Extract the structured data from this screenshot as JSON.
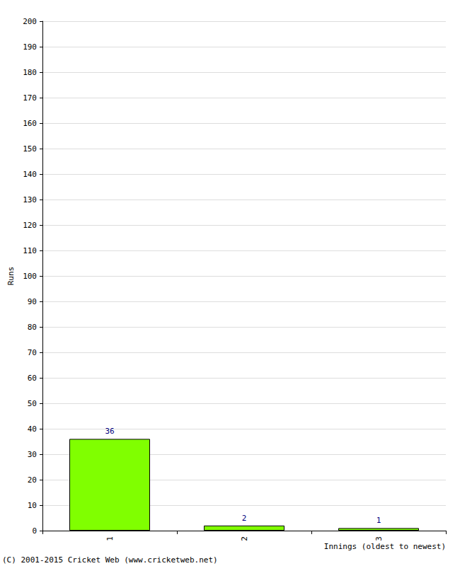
{
  "chart_data": {
    "type": "bar",
    "xlabel": "Innings (oldest to newest)",
    "ylabel": "Runs",
    "annotations": [
      "(C) 2001-2015 Cricket Web (www.cricketweb.net)"
    ],
    "categories": [
      "1",
      "2",
      "3"
    ],
    "values": [
      36,
      2,
      1
    ],
    "color": "#80ff00",
    "ylim": [
      0,
      200
    ],
    "yticks": [
      0,
      10,
      20,
      30,
      40,
      50,
      60,
      70,
      80,
      90,
      100,
      110,
      120,
      130,
      140,
      150,
      160,
      170,
      180,
      190,
      200
    ],
    "grid": true,
    "data_labels": true
  }
}
